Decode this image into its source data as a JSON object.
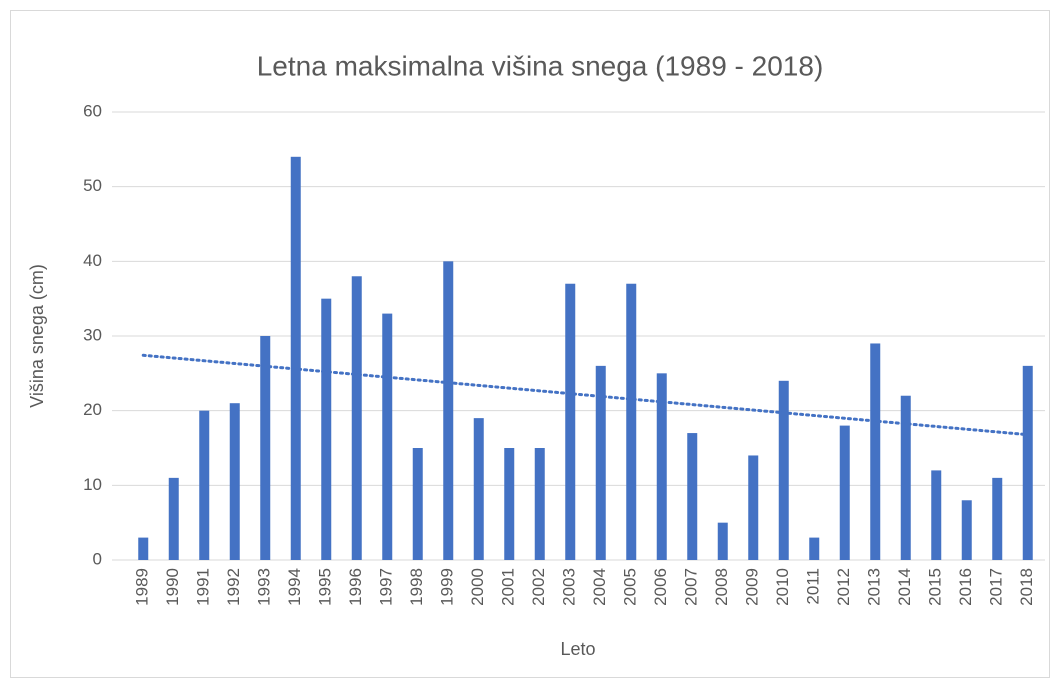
{
  "chart_data": {
    "type": "bar",
    "title": "Letna maksimalna višina snega (1989 - 2018)",
    "x_label": "Leto",
    "y_label": "Višina snega (cm)",
    "categories": [
      "1989",
      "1990",
      "1991",
      "1992",
      "1993",
      "1994",
      "1995",
      "1996",
      "1997",
      "1998",
      "1999",
      "2000",
      "2001",
      "2002",
      "2003",
      "2004",
      "2005",
      "2006",
      "2007",
      "2008",
      "2009",
      "2010",
      "2011",
      "2012",
      "2013",
      "2014",
      "2015",
      "2016",
      "2017",
      "2018"
    ],
    "values": [
      3,
      11,
      20,
      21,
      30,
      54,
      35,
      38,
      33,
      15,
      40,
      19,
      15,
      15,
      37,
      26,
      37,
      25,
      17,
      5,
      14,
      24,
      3,
      18,
      29,
      22,
      12,
      8,
      11,
      26
    ],
    "color": "#4472c4",
    "trendline": true,
    "ylim": [
      0,
      60
    ],
    "yticks": [
      0,
      10,
      20,
      30,
      40,
      50,
      60
    ],
    "grid": true
  }
}
